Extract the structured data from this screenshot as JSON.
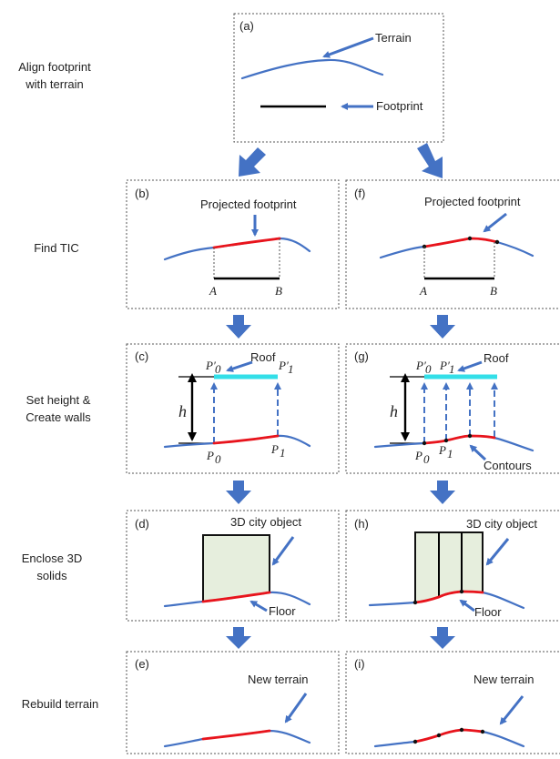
{
  "steps": {
    "align_line1": "Align footprint",
    "align_line2": "with terrain",
    "find_tic": "Find TIC",
    "set_height_line1": "Set height &",
    "set_height_line2": "Create walls",
    "enclose_line1": "Enclose 3D",
    "enclose_line2": "solids",
    "rebuild": "Rebuild terrain"
  },
  "panels": {
    "a": {
      "tag": "(a)",
      "terrain": "Terrain",
      "footprint": "Footprint"
    },
    "b": {
      "tag": "(b)",
      "projected": "Projected footprint",
      "point_a": "A",
      "point_b": "B"
    },
    "c": {
      "tag": "(c)",
      "roof": "Roof",
      "h": "h"
    },
    "d": {
      "tag": "(d)",
      "object": "3D city object",
      "floor": "Floor"
    },
    "e": {
      "tag": "(e)",
      "new_terrain": "New terrain"
    },
    "f": {
      "tag": "(f)",
      "projected": "Projected footprint",
      "point_a": "A",
      "point_b": "B"
    },
    "g": {
      "tag": "(g)",
      "roof": "Roof",
      "h": "h",
      "contours": "Contours"
    },
    "h": {
      "tag": "(h)",
      "object": "3D city object",
      "floor": "Floor"
    },
    "i": {
      "tag": "(i)",
      "new_terrain": "New terrain"
    }
  },
  "points": {
    "P": "P",
    "sub0": "0",
    "sub1": "1",
    "prime": "′"
  },
  "colors": {
    "terrain": "#4472c4",
    "footprint_projected": "#e8141c",
    "roof": "#33dfe8",
    "solid_fill": "#e6eedd",
    "arrow": "#4472c4"
  }
}
